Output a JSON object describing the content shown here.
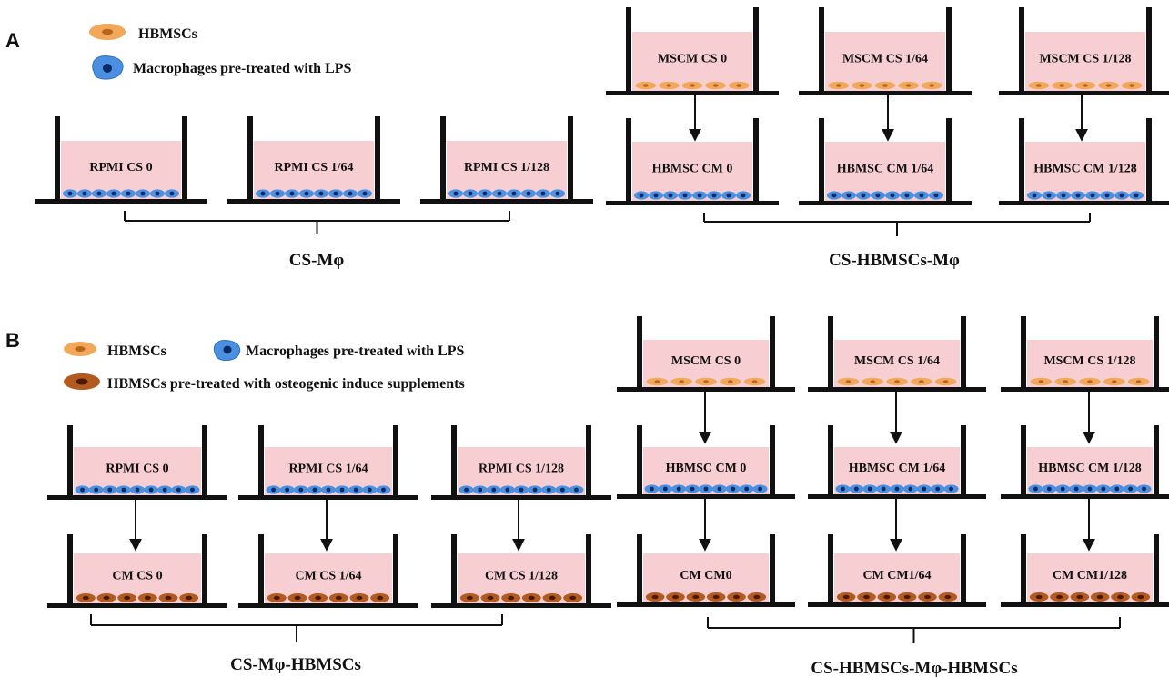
{
  "panel_a": {
    "letter": "A",
    "legend": {
      "hbmsc": "HBMSCs",
      "macrophage": "Macrophages pre-treated with LPS"
    },
    "left_wells": [
      "RPMI CS 0",
      "RPMI CS 1/64",
      "RPMI CS 1/128"
    ],
    "right_top_wells": [
      "MSCM CS 0",
      "MSCM CS 1/64",
      "MSCM CS 1/128"
    ],
    "right_bottom_wells": [
      "HBMSC CM 0",
      "HBMSC CM 1/64",
      "HBMSC CM 1/128"
    ],
    "left_group_label": "CS-Mφ",
    "right_group_label": "CS-HBMSCs-Mφ"
  },
  "panel_b": {
    "letter": "B",
    "legend": {
      "hbmsc": "HBMSCs",
      "macrophage": "Macrophages pre-treated with LPS",
      "osteo": "HBMSCs pre-treated with osteogenic induce supplements"
    },
    "left_top_wells": [
      "RPMI CS 0",
      "RPMI CS 1/64",
      "RPMI CS 1/128"
    ],
    "left_bottom_wells": [
      "CM CS 0",
      "CM CS 1/64",
      "CM CS 1/128"
    ],
    "right_top_wells": [
      "MSCM CS 0",
      "MSCM CS 1/64",
      "MSCM CS 1/128"
    ],
    "right_mid_wells": [
      "HBMSC CM 0",
      "HBMSC CM 1/64",
      "HBMSC CM 1/128"
    ],
    "right_bottom_wells": [
      "CM CM0",
      "CM CM1/64",
      "CM CM1/128"
    ],
    "left_group_label": "CS-Mφ-HBMSCs",
    "right_group_label": "CS-HBMSCs-Mφ-HBMSCs"
  },
  "colors": {
    "medium": "#f7cfd2",
    "wall": "#111111",
    "hbmsc_outer": "#f2a85a",
    "hbmsc_inner": "#b5651d",
    "macrophage_outer": "#4a8fe0",
    "macrophage_inner": "#0b2a66",
    "osteo_outer": "#b35a1f",
    "osteo_inner": "#4a1a05"
  }
}
